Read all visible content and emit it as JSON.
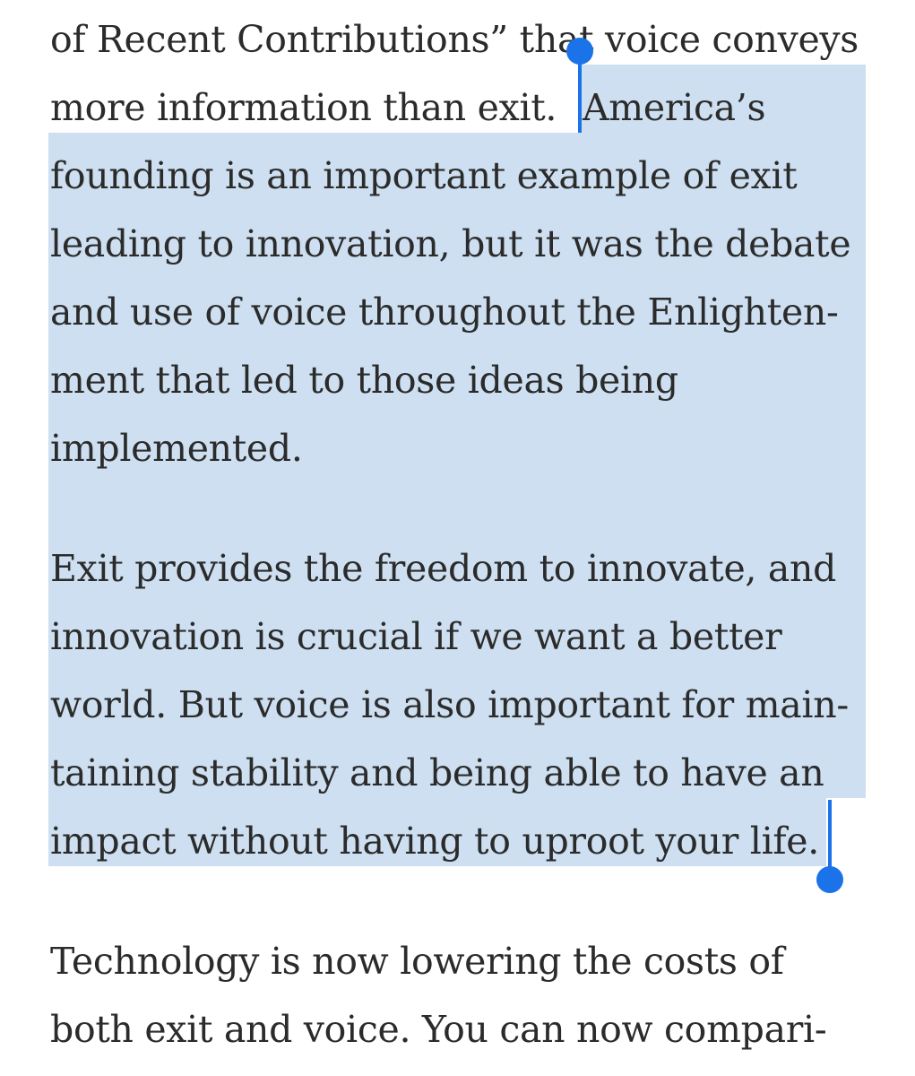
{
  "article": {
    "lines": [
      "of Recent Contributions” that voice conveys",
      "more information than exit.",
      "America’s",
      "founding is an important example of exit",
      "leading to innovation, but it was the debate",
      "and use of voice throughout the Enlighten-",
      "ment that led to those ideas being",
      "implemented.",
      "Exit provides the freedom to innovate, and",
      "innovation is crucial if we want a better",
      "world. But voice is also important for main-",
      "taining stability and being able to have an",
      "impact without having to uproot your life.",
      "Technology is now lowering the costs of",
      "both exit and voice. You can now compari-"
    ]
  },
  "selection": {
    "highlight_color": "#cddff0",
    "handle_color": "#1a73e8"
  }
}
